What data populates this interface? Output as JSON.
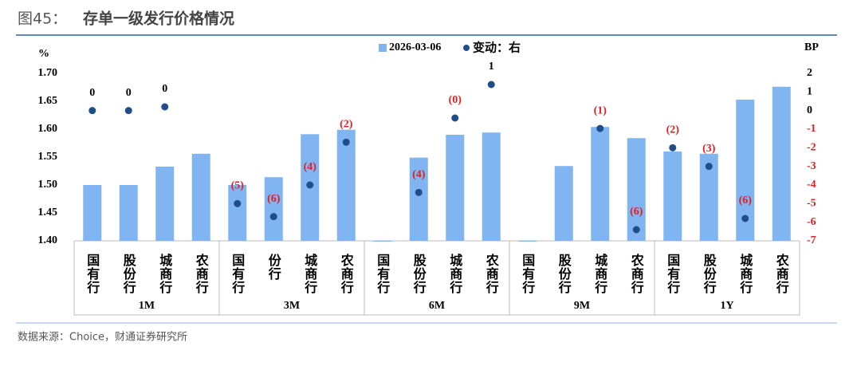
{
  "chart_data": {
    "type": "bar",
    "figure_label": "图45：",
    "title": "存单一级发行价格情况",
    "source": "数据来源：Choice，财通证券研究所",
    "ylabel": "%",
    "y2label": "BP",
    "groups": [
      "1M",
      "3M",
      "6M",
      "9M",
      "1Y"
    ],
    "categories": [
      "国有行",
      "股份行",
      "城商行",
      "农商行",
      "国有行",
      "份行",
      "城商行",
      "农商行",
      "国有行",
      "股份行",
      "城商行",
      "农商行",
      "国有行",
      "股份行",
      "城商行",
      "农商行",
      "国有行",
      "股份行",
      "城商行",
      "农商行"
    ],
    "ylim": [
      1.4,
      1.7
    ],
    "yticks": [
      {
        "value": 1.4,
        "label": "1.40"
      },
      {
        "value": 1.45,
        "label": "1.45"
      },
      {
        "value": 1.5,
        "label": "1.50"
      },
      {
        "value": 1.55,
        "label": "1.55"
      },
      {
        "value": 1.6,
        "label": "1.60"
      },
      {
        "value": 1.65,
        "label": "1.65"
      },
      {
        "value": 1.7,
        "label": "1.70"
      }
    ],
    "y2lim": [
      -7,
      2
    ],
    "y2ticks": [
      2,
      1,
      0,
      -1,
      -2,
      -3,
      -4,
      -5,
      -6,
      -7
    ],
    "negative_color": "#e02020",
    "series": [
      {
        "name": "2026-03-06",
        "type": "bar",
        "color": "#80b5f2",
        "values": [
          1.5,
          1.5,
          1.533,
          1.556,
          1.5,
          1.514,
          1.591,
          1.599,
          1.4,
          1.549,
          1.59,
          1.594,
          1.4,
          1.534,
          1.604,
          1.584,
          1.56,
          1.556,
          1.653,
          1.676
        ]
      },
      {
        "name": "变动：右",
        "type": "scatter",
        "axis": "y2",
        "color": "#1f4e8a",
        "values": [
          0,
          0,
          0.2,
          null,
          -5,
          -5.7,
          -4,
          -1.7,
          null,
          -4.4,
          -0.4,
          1.4,
          null,
          null,
          -0.96,
          -6.4,
          -2,
          -3,
          -5.8,
          null
        ],
        "value_labels": [
          "0",
          "0",
          "0",
          null,
          "(5)",
          "(6)",
          "(4)",
          "(2)",
          null,
          "(4)",
          "(0)",
          "1",
          null,
          null,
          "(1)",
          "(6)",
          "(2)",
          "(3)",
          "(6)",
          null
        ]
      }
    ]
  }
}
